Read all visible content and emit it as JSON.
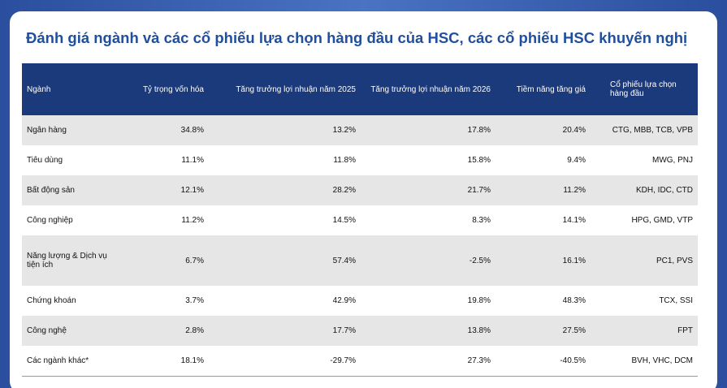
{
  "title": "Đánh giá ngành và các cổ phiếu lựa chọn hàng đầu của HSC, các cổ phiếu HSC khuyến nghị",
  "table": {
    "headers": [
      "Ngành",
      "Tỷ trọng vốn hóa",
      "Tăng trưởng lợi nhuận năm 2025",
      "Tăng trưởng lợi nhuận năm 2026",
      "Tiềm năng tăng giá",
      "Cổ phiếu lựa chọn hàng đầu"
    ],
    "rows": [
      [
        "Ngân hàng",
        "34.8%",
        "13.2%",
        "17.8%",
        "20.4%",
        "CTG, MBB, TCB, VPB"
      ],
      [
        "Tiêu dùng",
        "11.1%",
        "11.8%",
        "15.8%",
        "9.4%",
        "MWG, PNJ"
      ],
      [
        "Bất động sản",
        "12.1%",
        "28.2%",
        "21.7%",
        "11.2%",
        "KDH, IDC, CTD"
      ],
      [
        "Công nghiệp",
        "11.2%",
        "14.5%",
        "8.3%",
        "14.1%",
        "HPG, GMD, VTP"
      ],
      [
        "Năng lượng & Dịch vụ tiện ích",
        "6.7%",
        "57.4%",
        "-2.5%",
        "16.1%",
        "PC1, PVS"
      ],
      [
        "Chứng khoán",
        "3.7%",
        "42.9%",
        "19.8%",
        "48.3%",
        "TCX, SSI"
      ],
      [
        "Công nghệ",
        "2.8%",
        "17.7%",
        "13.8%",
        "27.5%",
        "FPT"
      ],
      [
        "Các ngành khác*",
        "18.1%",
        "-29.7%",
        "27.3%",
        "-40.5%",
        "BVH, VHC, DCM"
      ]
    ]
  }
}
